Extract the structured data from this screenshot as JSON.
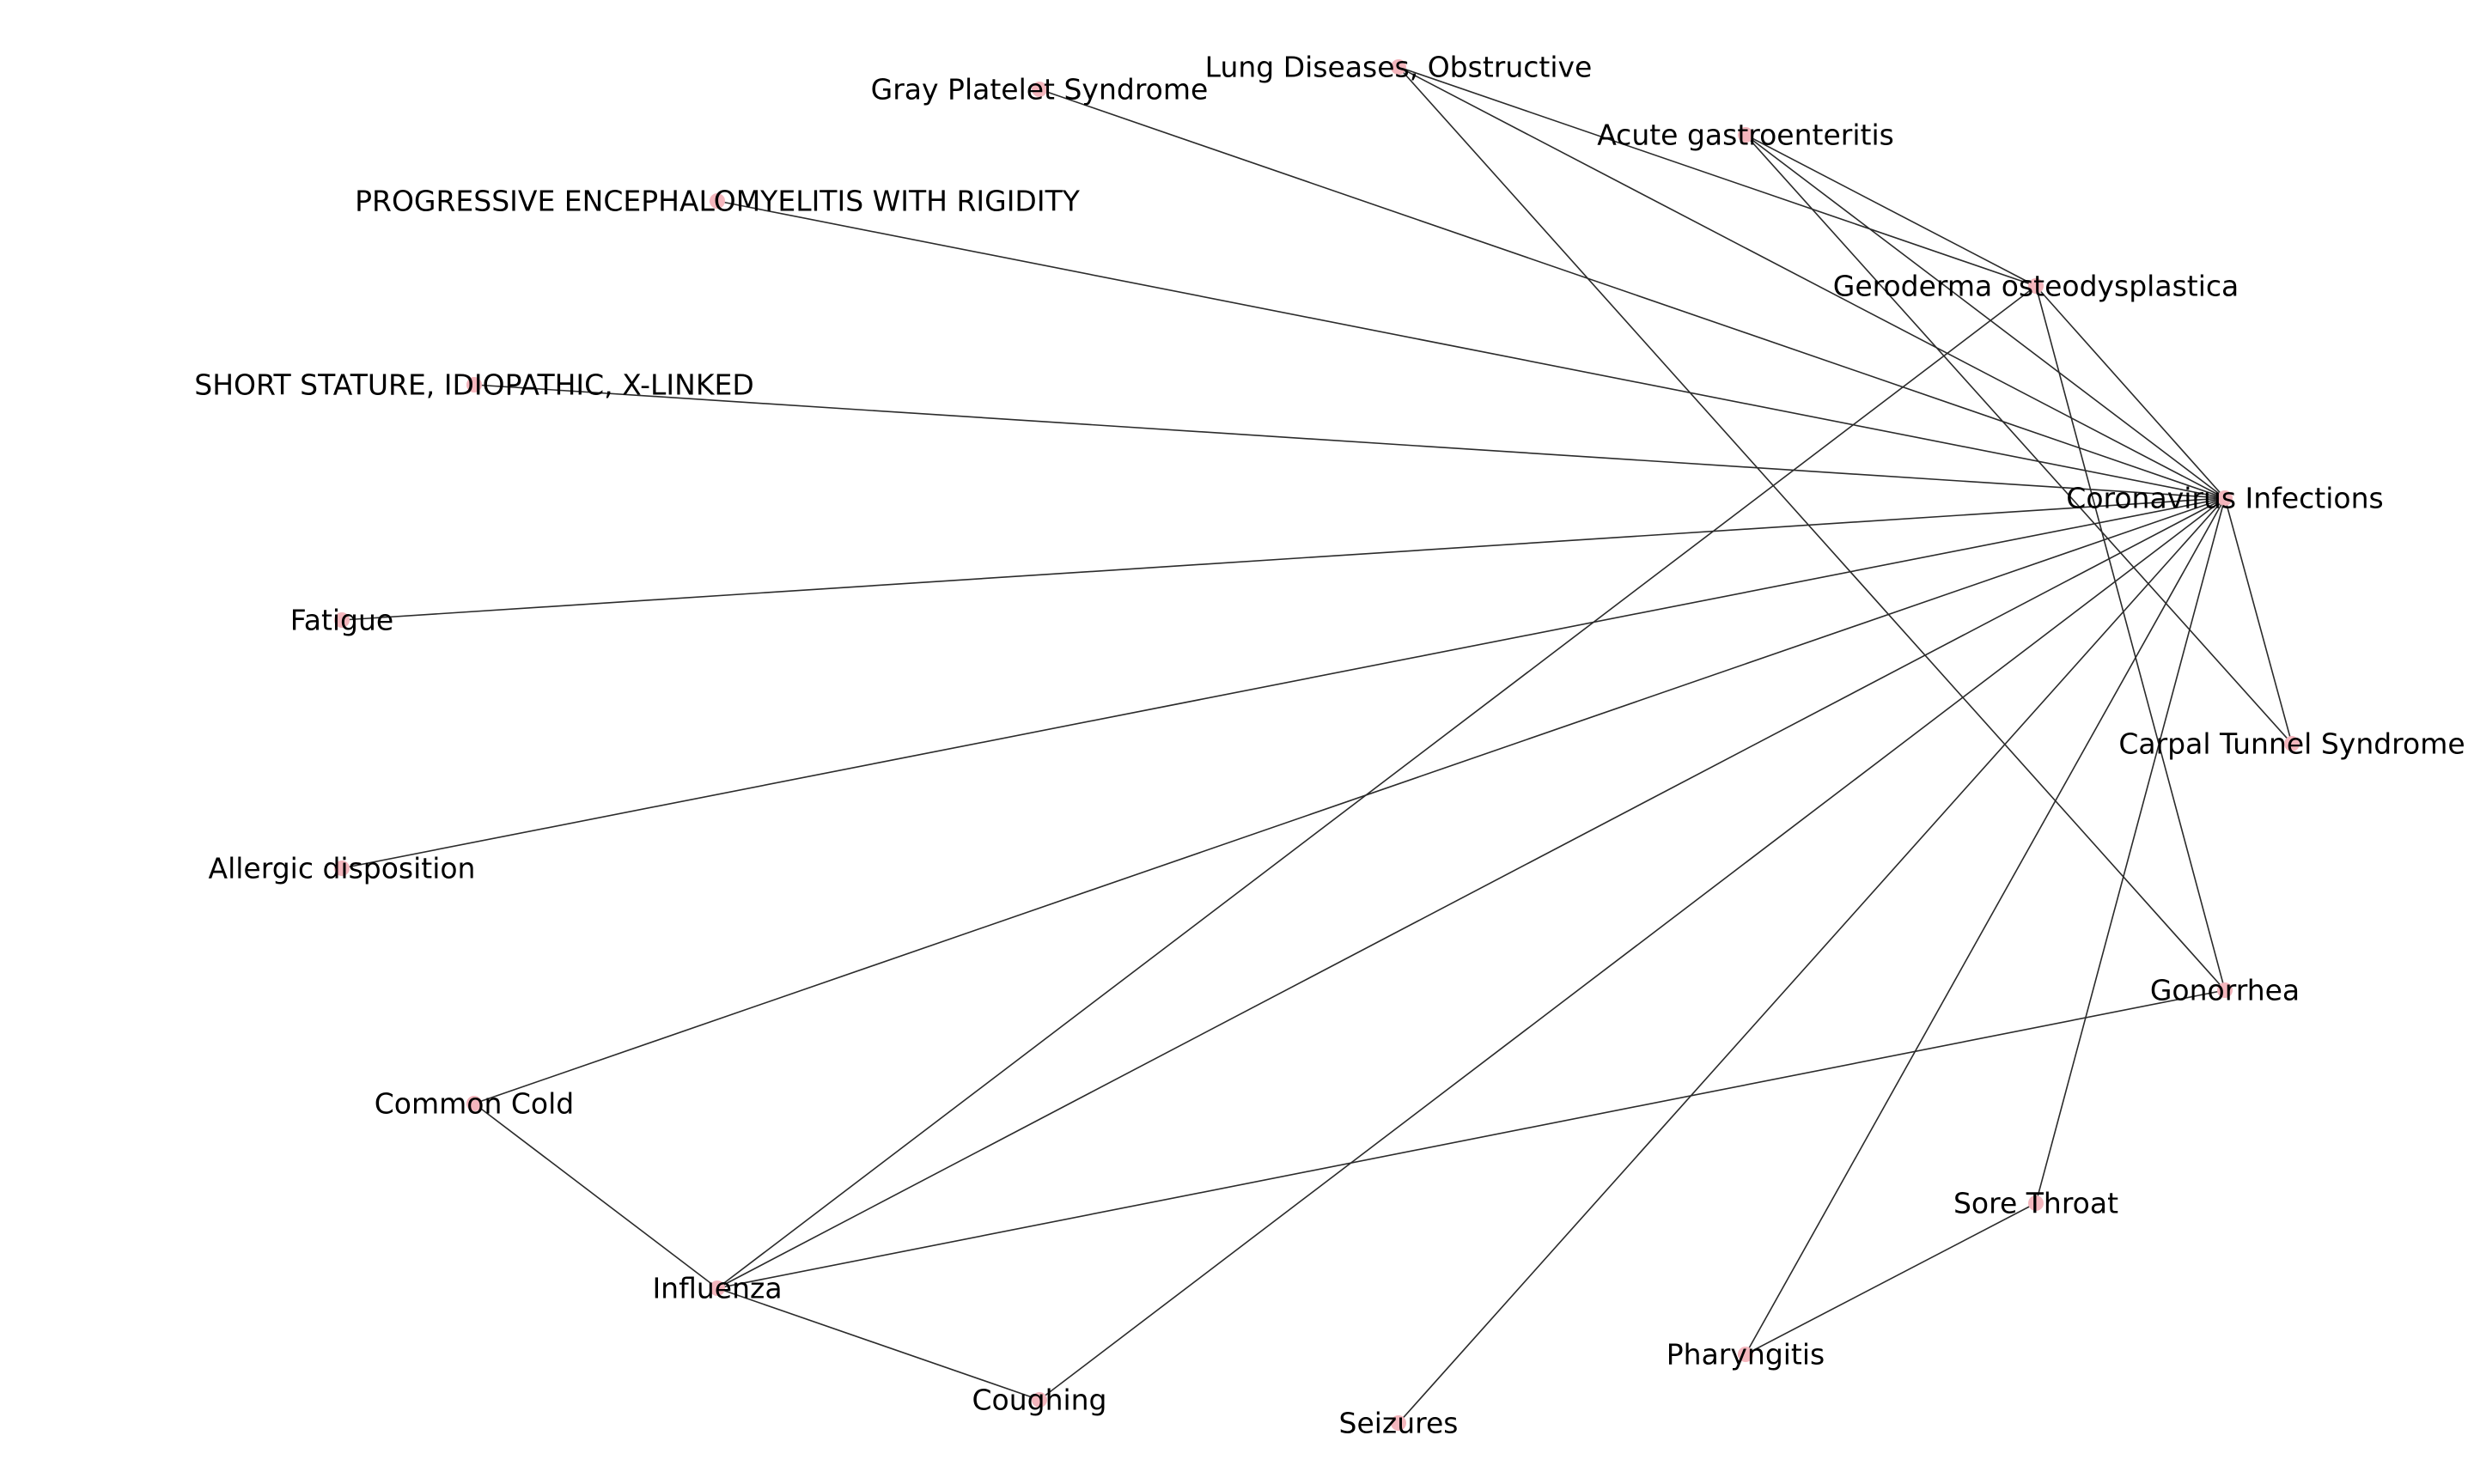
{
  "graph": {
    "node_color": "#f4b6bd",
    "edge_color": "#2b2b2b",
    "label_color": "#000000",
    "nodes": [
      {
        "id": "coronavirus",
        "label": "Coronavirus Infections"
      },
      {
        "id": "lung",
        "label": "Lung Diseases, Obstructive"
      },
      {
        "id": "gray",
        "label": "Gray Platelet Syndrome"
      },
      {
        "id": "acute",
        "label": "Acute gastroenteritis"
      },
      {
        "id": "progressive",
        "label": "PROGRESSIVE ENCEPHALOMYELITIS WITH RIGIDITY"
      },
      {
        "id": "geroderma",
        "label": "Geroderma osteodysplastica"
      },
      {
        "id": "short",
        "label": "SHORT STATURE, IDIOPATHIC, X-LINKED"
      },
      {
        "id": "fatigue",
        "label": "Fatigue"
      },
      {
        "id": "carpal",
        "label": "Carpal Tunnel Syndrome"
      },
      {
        "id": "allergic",
        "label": "Allergic disposition"
      },
      {
        "id": "gonorrhea",
        "label": "Gonorrhea"
      },
      {
        "id": "cold",
        "label": "Common Cold"
      },
      {
        "id": "sore",
        "label": "Sore Throat"
      },
      {
        "id": "influenza",
        "label": "Influenza"
      },
      {
        "id": "pharyngitis",
        "label": "Pharyngitis"
      },
      {
        "id": "coughing",
        "label": "Coughing"
      },
      {
        "id": "seizures",
        "label": "Seizures"
      }
    ],
    "edges": [
      [
        "gray",
        "coronavirus"
      ],
      [
        "progressive",
        "coronavirus"
      ],
      [
        "short",
        "coronavirus"
      ],
      [
        "fatigue",
        "coronavirus"
      ],
      [
        "allergic",
        "coronavirus"
      ],
      [
        "cold",
        "coronavirus"
      ],
      [
        "influenza",
        "coronavirus"
      ],
      [
        "coughing",
        "coronavirus"
      ],
      [
        "seizures",
        "coronavirus"
      ],
      [
        "pharyngitis",
        "coronavirus"
      ],
      [
        "sore",
        "coronavirus"
      ],
      [
        "carpal",
        "coronavirus"
      ],
      [
        "lung",
        "coronavirus"
      ],
      [
        "acute",
        "coronavirus"
      ],
      [
        "geroderma",
        "coronavirus"
      ],
      [
        "lung",
        "geroderma"
      ],
      [
        "lung",
        "gonorrhea"
      ],
      [
        "acute",
        "geroderma"
      ],
      [
        "acute",
        "carpal"
      ],
      [
        "geroderma",
        "influenza"
      ],
      [
        "geroderma",
        "gonorrhea"
      ],
      [
        "influenza",
        "gonorrhea"
      ],
      [
        "cold",
        "influenza"
      ],
      [
        "influenza",
        "coughing"
      ],
      [
        "sore",
        "pharyngitis"
      ]
    ]
  }
}
